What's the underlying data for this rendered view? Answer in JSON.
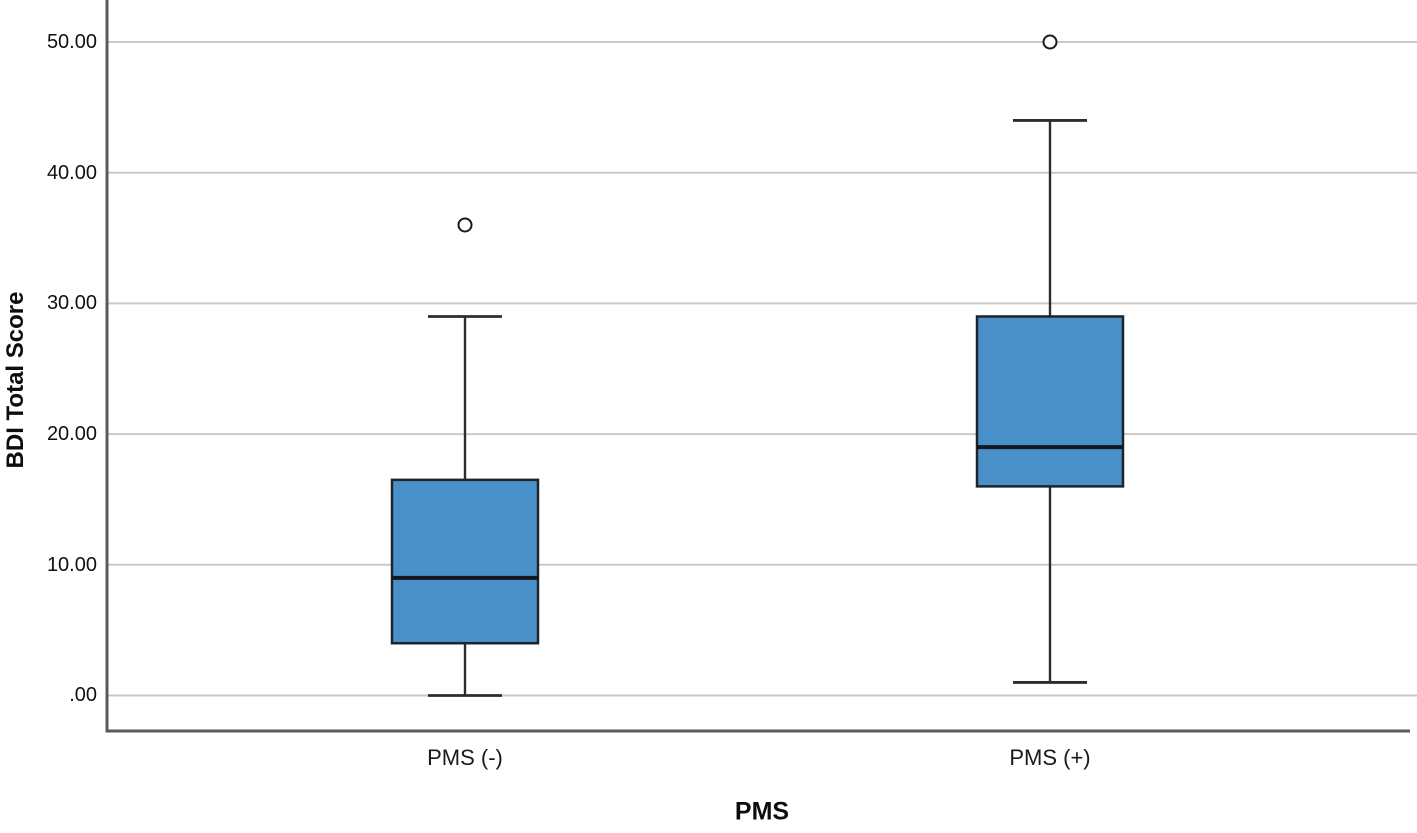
{
  "figure": {
    "background": "#ffffff",
    "y_axis_title": "BDI Total Score",
    "x_axis_title": "PMS"
  },
  "chart_data": {
    "type": "boxplot",
    "title": "",
    "xlabel": "PMS",
    "ylabel": "BDI Total Score",
    "ylim": [
      -3,
      53
    ],
    "grid": "horizontal",
    "legend": "none",
    "categories": [
      "PMS (-)",
      "PMS (+)"
    ],
    "yticks": [
      {
        "value": 50,
        "label": "50.00"
      },
      {
        "value": 40,
        "label": "40.00"
      },
      {
        "value": 30,
        "label": "30.00"
      },
      {
        "value": 20,
        "label": "20.00"
      },
      {
        "value": 10,
        "label": "10.00"
      },
      {
        "value": 0,
        "label": ".00"
      }
    ],
    "series": [
      {
        "category": "PMS (-)",
        "whisker_low": 0,
        "q1": 4,
        "median": 9,
        "q3": 16.5,
        "whisker_high": 29,
        "outliers": [
          36
        ]
      },
      {
        "category": "PMS (+)",
        "whisker_low": 1,
        "q1": 16,
        "median": 19,
        "q3": 29,
        "whisker_high": 44,
        "outliers": [
          50
        ]
      }
    ],
    "colors": {
      "box_fill": "#4a90c8",
      "box_border": "#1e242b",
      "median": "#14181e",
      "whisker": "#2d2d2d",
      "gridline": "#c9c9c9",
      "axis": "#5a5a5a",
      "outlier_stroke": "#1a1a1a",
      "outlier_fill": "#ffffff",
      "tick_label": "#101010"
    }
  }
}
